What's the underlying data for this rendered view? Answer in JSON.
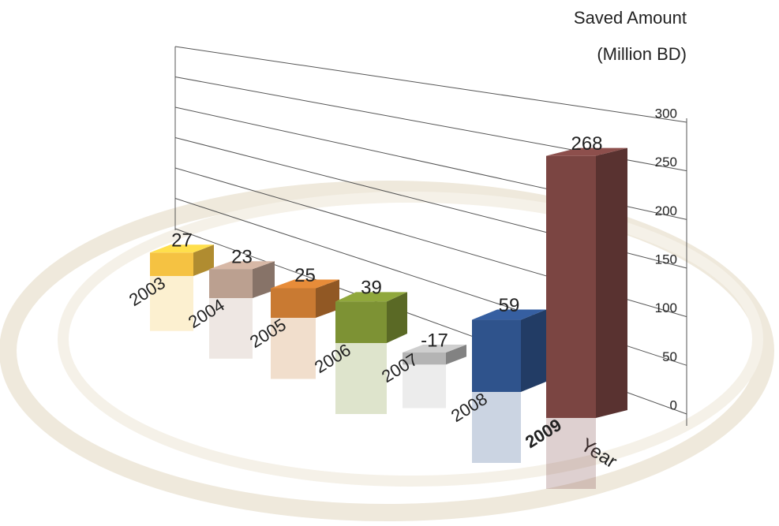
{
  "chart_data": {
    "type": "bar3d",
    "y_label": [
      "Saved Amount",
      "(Million BD)"
    ],
    "x_label": "Year",
    "categories": [
      "2003",
      "2004",
      "2005",
      "2006",
      "2007",
      "2008",
      "2009"
    ],
    "values": [
      27,
      23,
      25,
      39,
      -17,
      59,
      268
    ],
    "colors": [
      "#f5c242",
      "#bba090",
      "#c97a32",
      "#7d9234",
      "#b4b4b4",
      "#2f538c",
      "#7b4542"
    ],
    "ylim": [
      0,
      300
    ],
    "yticks": [
      0,
      50,
      100,
      150,
      200,
      250,
      300
    ],
    "grid": true
  }
}
